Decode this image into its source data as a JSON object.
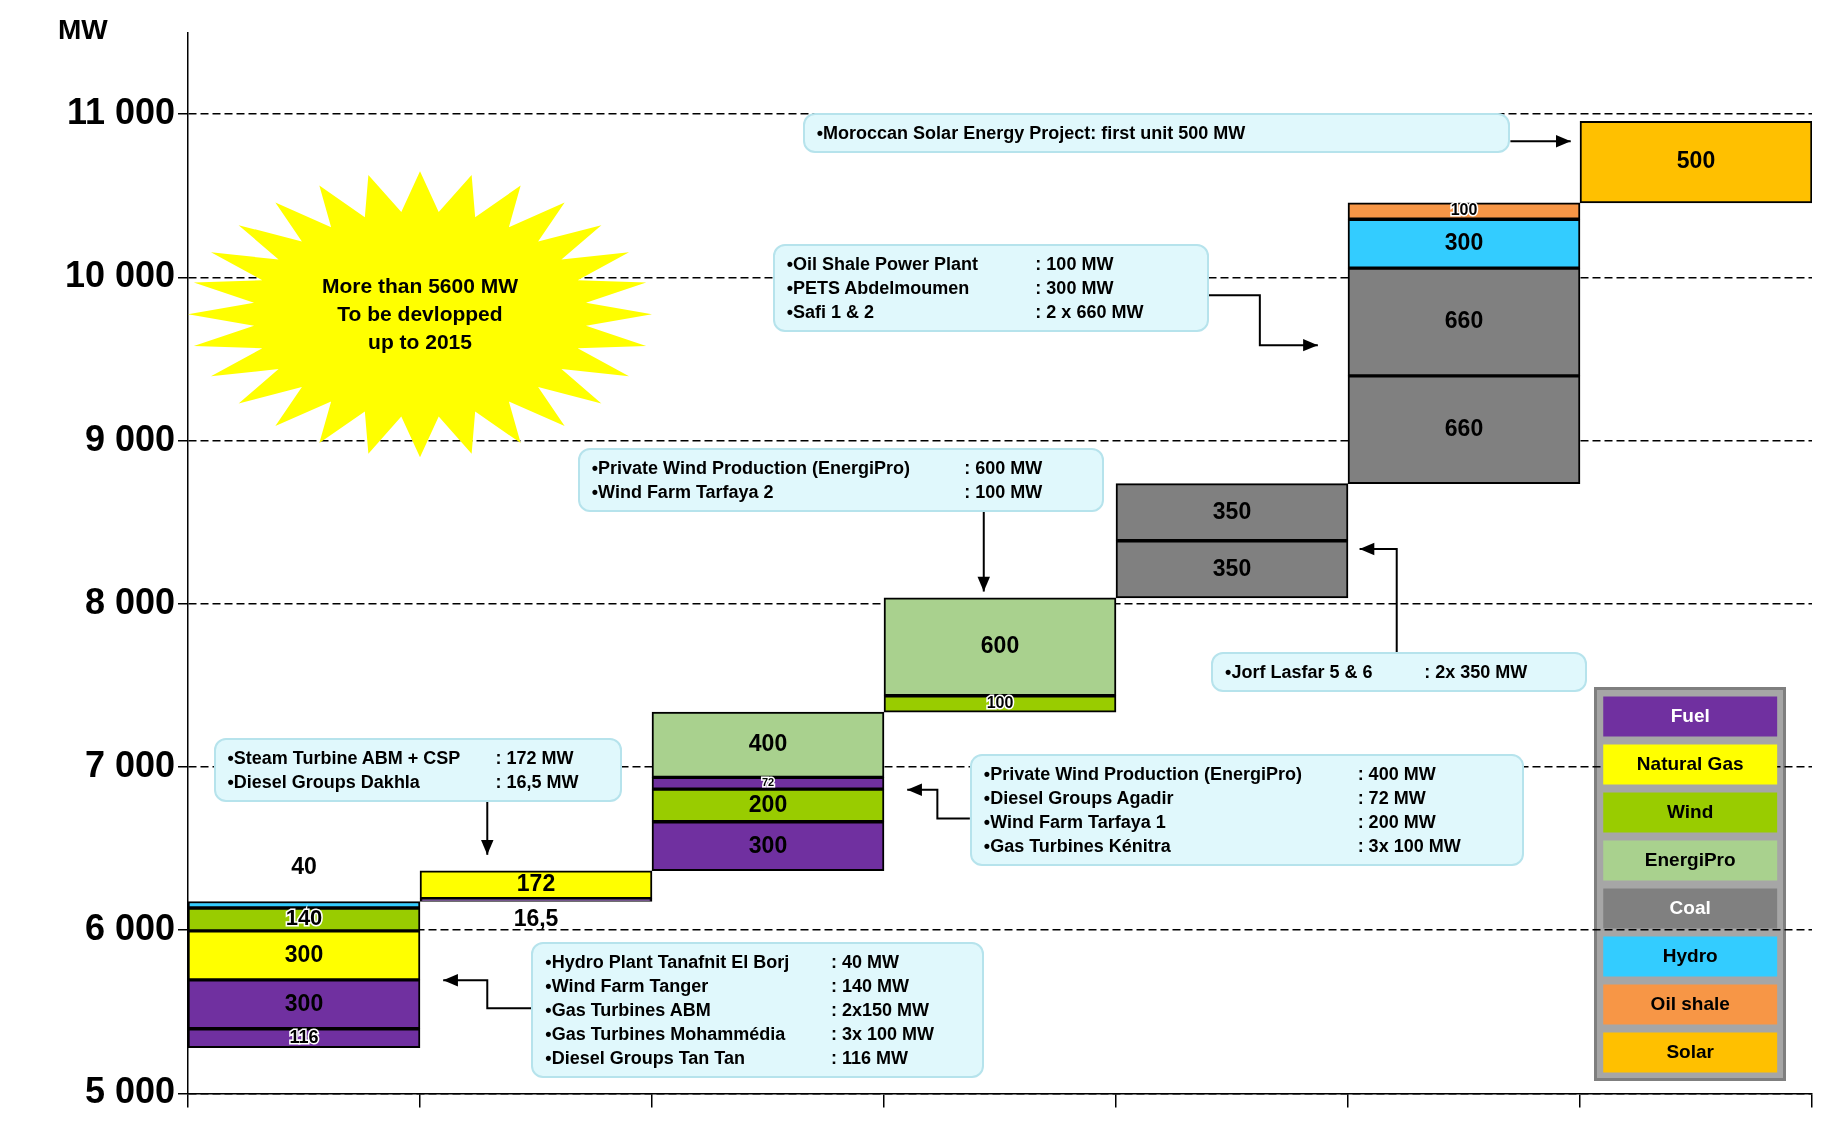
{
  "chart_data": {
    "type": "bar",
    "ylabel": "MW",
    "categories": [
      null,
      null,
      null,
      null,
      null,
      null,
      null
    ],
    "series": [
      {
        "name": "Fuel",
        "color": "#7030a0",
        "base": [
          5280,
          6176,
          6364.5,
          null,
          null,
          null,
          null
        ],
        "values": [
          116,
          16.5,
          300,
          null,
          null,
          null,
          null
        ],
        "value_labels": [
          "116",
          "16,5",
          "300",
          null,
          null,
          null,
          null
        ]
      },
      {
        "color": "#7030a0",
        "base": [
          5396,
          null,
          null,
          null,
          null,
          null,
          null
        ],
        "values": [
          300,
          null,
          null,
          null,
          null,
          null,
          null
        ],
        "value_labels": [
          "300",
          null,
          null,
          null,
          null,
          null,
          null
        ]
      },
      {
        "name": "Natural Gas",
        "color": "#ffff00",
        "base": [
          5696,
          6192.5,
          null,
          null,
          null,
          null,
          null
        ],
        "values": [
          300,
          172,
          null,
          null,
          null,
          null,
          null
        ],
        "value_labels": [
          "300",
          "172",
          null,
          null,
          null,
          null,
          null
        ]
      },
      {
        "name": "Wind",
        "color": "#99cc00",
        "base": [
          5996,
          null,
          6664.5,
          7336.5,
          null,
          null,
          null
        ],
        "values": [
          140,
          null,
          200,
          100,
          null,
          null,
          null
        ],
        "value_labels": [
          "140",
          null,
          "200",
          "100",
          null,
          null,
          null
        ]
      },
      {
        "color": "#7030a0",
        "base": [
          null,
          null,
          6864.5,
          null,
          null,
          null,
          null
        ],
        "values": [
          null,
          null,
          72,
          null,
          null,
          null,
          null
        ],
        "value_labels": [
          null,
          null,
          "72",
          null,
          null,
          null,
          null
        ]
      },
      {
        "name": "EnergiPro",
        "color": "#a9d18e",
        "base": [
          null,
          null,
          6936.5,
          7436.5,
          null,
          null,
          null
        ],
        "values": [
          null,
          null,
          400,
          600,
          null,
          null,
          null
        ],
        "value_labels": [
          null,
          null,
          "400",
          "600",
          null,
          null,
          null
        ]
      },
      {
        "name": "Coal",
        "color": "#808080",
        "base": [
          null,
          null,
          null,
          null,
          8036.5,
          8736.5,
          null
        ],
        "values": [
          null,
          null,
          null,
          null,
          350,
          660,
          null
        ],
        "value_labels": [
          null,
          null,
          null,
          null,
          "350",
          "660",
          null
        ]
      },
      {
        "color": "#808080",
        "base": [
          null,
          null,
          null,
          null,
          8386.5,
          9396.5,
          null
        ],
        "values": [
          null,
          null,
          null,
          null,
          350,
          660,
          null
        ],
        "value_labels": [
          null,
          null,
          null,
          null,
          "350",
          "660",
          null
        ]
      },
      {
        "name": "Hydro",
        "color": "#33ccff",
        "base": [
          6136,
          null,
          null,
          null,
          null,
          10056.5,
          null
        ],
        "values": [
          40,
          null,
          null,
          null,
          null,
          300,
          null
        ],
        "value_labels": [
          "40",
          null,
          null,
          null,
          null,
          "300",
          null
        ]
      },
      {
        "name": "Oil shale",
        "color": "#f79646",
        "base": [
          null,
          null,
          null,
          null,
          null,
          10356.5,
          null
        ],
        "values": [
          null,
          null,
          null,
          null,
          null,
          100,
          null
        ],
        "value_labels": [
          null,
          null,
          null,
          null,
          null,
          "100",
          null
        ]
      },
      {
        "name": "Solar",
        "color": "#ffc000",
        "base": [
          null,
          null,
          null,
          null,
          null,
          null,
          10456.5
        ],
        "values": [
          null,
          null,
          null,
          null,
          null,
          null,
          500
        ],
        "value_labels": [
          null,
          null,
          null,
          null,
          null,
          null,
          "500"
        ]
      }
    ],
    "ylim": [
      5000,
      11500
    ],
    "yticks": [
      {
        "value": 5000,
        "label": "5 000"
      },
      {
        "value": 6000,
        "label": "6 000"
      },
      {
        "value": 7000,
        "label": "7 000"
      },
      {
        "value": 8000,
        "label": "8 000"
      },
      {
        "value": 9000,
        "label": "9 000"
      },
      {
        "value": 10000,
        "label": "10 000"
      },
      {
        "value": 11000,
        "label": "11 000"
      }
    ],
    "grid": "y",
    "legend": "bottom right",
    "tick_labels": "y",
    "annotations": [
      "More than 5600 MW\nTo be devlopped\nup to 2015",
      "•Moroccan Solar Energy Project: first unit 500 MW",
      "•Oil Shale Power Plant : 100 MW\n•PETS Abdelmoumen : 300 MW\n•Safi 1 & 2 : 2 x 660 MW",
      "•Private Wind Production (EnergiPro) : 600 MW\n•Wind Farm Tarfaya 2 : 100 MW",
      "•Jorf Lasfar 5 & 6 : 2x 350 MW",
      "•Steam Turbine ABM + CSP : 172 MW\n•Diesel Groups Dakhla : 16,5 MW",
      "•Private Wind Production (EnergiPro) : 400 MW\n•Diesel Groups Agadir : 72 MW\n•Wind Farm Tarfaya 1 : 200 MW\n•Gas Turbines Kénitra : 3x 100 MW",
      "•Hydro Plant Tanafnit El Borj : 40 MW\n•Wind Farm Tanger : 140 MW\n•Gas Turbines ABM : 2x150 MW\n•Gas Turbines Mohammédia : 3x 100 MW\n•Diesel Groups Tan Tan : 116 MW"
    ]
  }
}
